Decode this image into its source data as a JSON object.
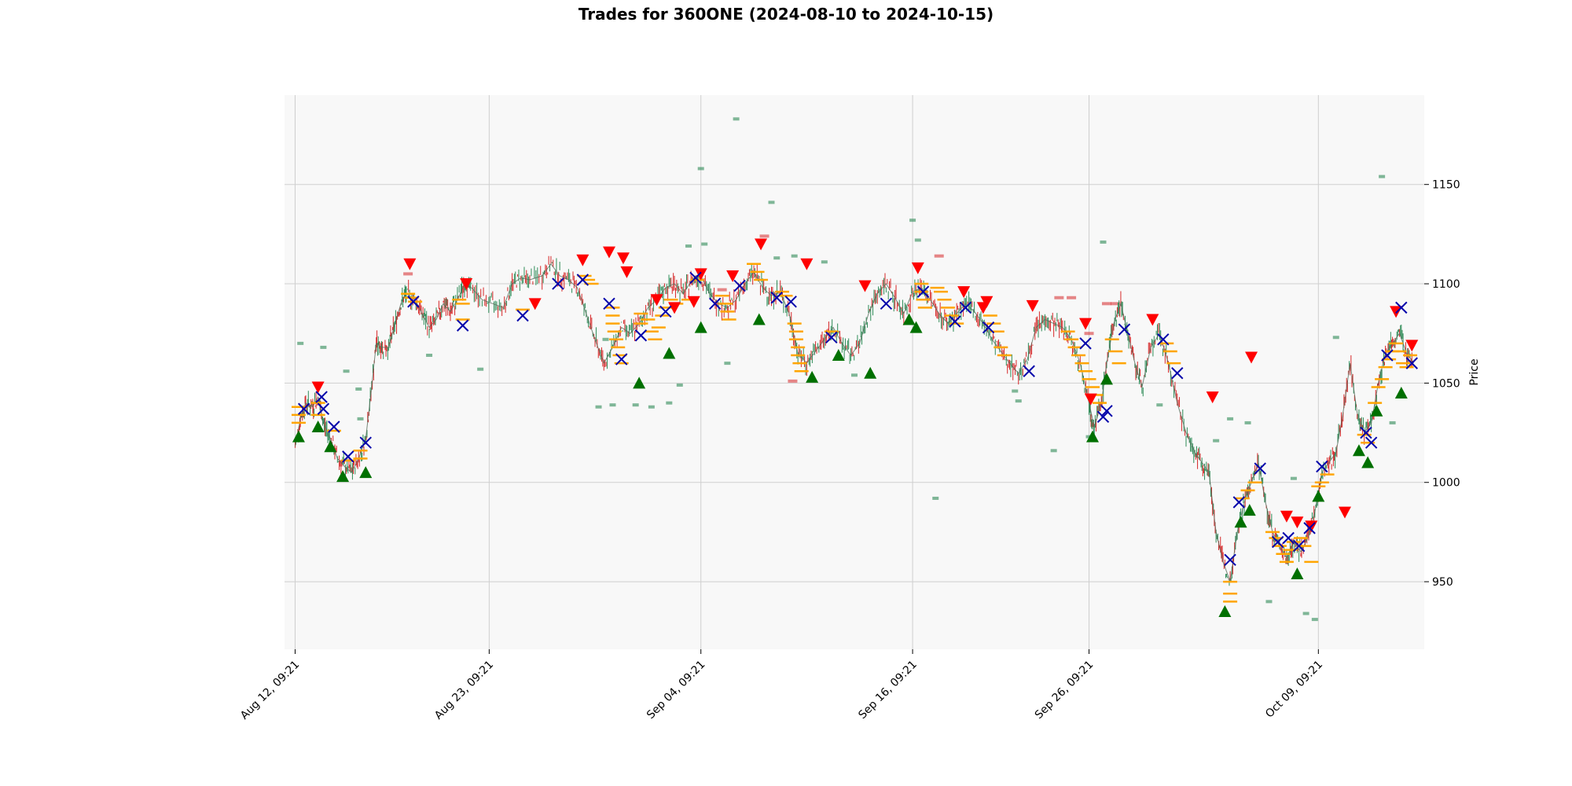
{
  "chart_data": {
    "type": "candlestick",
    "title": "Trades for 360ONE (2024-08-10 to 2024-10-15)",
    "ylabel": "Price",
    "xlabel": "",
    "ylim": [
      916,
      1195
    ],
    "yticks": [
      950,
      1000,
      1050,
      1100,
      1150
    ],
    "x_range_days": [
      -0.6,
      64
    ],
    "xticks": [
      {
        "label": "Aug 12, 09:21",
        "day": 0
      },
      {
        "label": "Aug 23, 09:21",
        "day": 11
      },
      {
        "label": "Sep 04, 09:21",
        "day": 23
      },
      {
        "label": "Sep 16, 09:21",
        "day": 35
      },
      {
        "label": "Sep 26, 09:21",
        "day": 45
      },
      {
        "label": "Oct 09, 09:21",
        "day": 58
      }
    ],
    "grid": true,
    "y_axis_side": "right",
    "colors": {
      "background": "#f8f8f8",
      "grid": "#cfcfcf",
      "up": "#2e8b57",
      "down": "#d62728",
      "price_line": "#556b5a",
      "buy": "#007000",
      "sell": "#ff0000",
      "exit": "#0000aa",
      "level": "#ffa500"
    },
    "price_path": [
      [
        0,
        1018
      ],
      [
        0.3,
        1032
      ],
      [
        0.6,
        1040
      ],
      [
        1.0,
        1038
      ],
      [
        1.3,
        1043
      ],
      [
        1.6,
        1030
      ],
      [
        2.0,
        1022
      ],
      [
        2.4,
        1012
      ],
      [
        2.8,
        1008
      ],
      [
        3.2,
        1005
      ],
      [
        3.6,
        1012
      ],
      [
        4.0,
        1022
      ],
      [
        4.3,
        1045
      ],
      [
        4.6,
        1070
      ],
      [
        4.9,
        1068
      ],
      [
        5.3,
        1068
      ],
      [
        5.6,
        1078
      ],
      [
        6.0,
        1090
      ],
      [
        6.3,
        1095
      ],
      [
        6.8,
        1092
      ],
      [
        7.2,
        1085
      ],
      [
        7.6,
        1078
      ],
      [
        8.0,
        1082
      ],
      [
        8.4,
        1090
      ],
      [
        8.8,
        1086
      ],
      [
        9.2,
        1092
      ],
      [
        9.6,
        1100
      ],
      [
        10.0,
        1098
      ],
      [
        10.6,
        1092
      ],
      [
        11.2,
        1090
      ],
      [
        11.8,
        1088
      ],
      [
        12.3,
        1100
      ],
      [
        12.8,
        1103
      ],
      [
        13.3,
        1102
      ],
      [
        14.0,
        1104
      ],
      [
        14.5,
        1110
      ],
      [
        15.0,
        1104
      ],
      [
        15.5,
        1102
      ],
      [
        16.0,
        1098
      ],
      [
        16.5,
        1085
      ],
      [
        17.0,
        1072
      ],
      [
        17.5,
        1060
      ],
      [
        18.0,
        1068
      ],
      [
        18.5,
        1078
      ],
      [
        19.0,
        1075
      ],
      [
        19.5,
        1080
      ],
      [
        20.0,
        1088
      ],
      [
        20.5,
        1092
      ],
      [
        21.0,
        1098
      ],
      [
        21.5,
        1100
      ],
      [
        22.0,
        1095
      ],
      [
        22.5,
        1102
      ],
      [
        23.0,
        1104
      ],
      [
        23.5,
        1095
      ],
      [
        24.0,
        1090
      ],
      [
        24.5,
        1088
      ],
      [
        25.0,
        1092
      ],
      [
        25.5,
        1100
      ],
      [
        26.0,
        1106
      ],
      [
        26.5,
        1098
      ],
      [
        27.0,
        1094
      ],
      [
        27.5,
        1096
      ],
      [
        28.0,
        1085
      ],
      [
        28.5,
        1065
      ],
      [
        29.0,
        1060
      ],
      [
        29.5,
        1066
      ],
      [
        30.0,
        1072
      ],
      [
        30.5,
        1078
      ],
      [
        31.0,
        1070
      ],
      [
        31.5,
        1064
      ],
      [
        32.0,
        1070
      ],
      [
        32.5,
        1085
      ],
      [
        33.0,
        1095
      ],
      [
        33.5,
        1100
      ],
      [
        34.0,
        1093
      ],
      [
        34.5,
        1085
      ],
      [
        35.0,
        1096
      ],
      [
        35.5,
        1098
      ],
      [
        36.0,
        1092
      ],
      [
        36.5,
        1085
      ],
      [
        37.0,
        1080
      ],
      [
        37.5,
        1085
      ],
      [
        38.0,
        1090
      ],
      [
        38.5,
        1086
      ],
      [
        39.0,
        1080
      ],
      [
        39.5,
        1072
      ],
      [
        40.0,
        1066
      ],
      [
        40.5,
        1060
      ],
      [
        41.0,
        1055
      ],
      [
        41.5,
        1062
      ],
      [
        42.0,
        1078
      ],
      [
        42.5,
        1082
      ],
      [
        43.0,
        1080
      ],
      [
        43.5,
        1078
      ],
      [
        44.0,
        1072
      ],
      [
        44.5,
        1060
      ],
      [
        45.0,
        1040
      ],
      [
        45.3,
        1028
      ],
      [
        45.7,
        1040
      ],
      [
        46.0,
        1060
      ],
      [
        46.4,
        1080
      ],
      [
        46.8,
        1090
      ],
      [
        47.2,
        1075
      ],
      [
        47.6,
        1060
      ],
      [
        48.0,
        1048
      ],
      [
        48.5,
        1068
      ],
      [
        49.0,
        1075
      ],
      [
        49.5,
        1060
      ],
      [
        50.0,
        1040
      ],
      [
        50.5,
        1025
      ],
      [
        51.0,
        1015
      ],
      [
        51.4,
        1010
      ],
      [
        51.8,
        1005
      ],
      [
        52.2,
        975
      ],
      [
        52.6,
        960
      ],
      [
        53.0,
        950
      ],
      [
        53.4,
        975
      ],
      [
        53.8,
        990
      ],
      [
        54.2,
        1000
      ],
      [
        54.6,
        1010
      ],
      [
        55.0,
        990
      ],
      [
        55.4,
        975
      ],
      [
        55.8,
        968
      ],
      [
        56.2,
        962
      ],
      [
        56.6,
        970
      ],
      [
        57.0,
        965
      ],
      [
        57.4,
        972
      ],
      [
        57.8,
        985
      ],
      [
        58.2,
        1005
      ],
      [
        58.6,
        1010
      ],
      [
        59.0,
        1015
      ],
      [
        59.4,
        1035
      ],
      [
        59.8,
        1060
      ],
      [
        60.2,
        1035
      ],
      [
        60.6,
        1025
      ],
      [
        61.0,
        1030
      ],
      [
        61.4,
        1050
      ],
      [
        61.8,
        1065
      ],
      [
        62.2,
        1070
      ],
      [
        62.6,
        1075
      ],
      [
        63.0,
        1065
      ],
      [
        63.4,
        1060
      ]
    ],
    "buys": [
      [
        0.2,
        1023
      ],
      [
        1.3,
        1028
      ],
      [
        2.0,
        1018
      ],
      [
        2.7,
        1003
      ],
      [
        4.0,
        1005
      ],
      [
        19.5,
        1050
      ],
      [
        21.2,
        1065
      ],
      [
        23.0,
        1078
      ],
      [
        26.3,
        1082
      ],
      [
        30.8,
        1064
      ],
      [
        34.8,
        1082
      ],
      [
        35.2,
        1078
      ],
      [
        45.2,
        1023
      ],
      [
        46.0,
        1052
      ],
      [
        52.7,
        935
      ],
      [
        53.6,
        980
      ],
      [
        54.1,
        986
      ],
      [
        56.8,
        954
      ],
      [
        58.0,
        993
      ],
      [
        60.3,
        1016
      ],
      [
        60.8,
        1010
      ],
      [
        61.3,
        1036
      ],
      [
        62.7,
        1045
      ],
      [
        29.3,
        1053
      ],
      [
        32.6,
        1055
      ]
    ],
    "sells": [
      [
        1.3,
        1048
      ],
      [
        6.5,
        1110
      ],
      [
        9.7,
        1100
      ],
      [
        13.6,
        1090
      ],
      [
        16.3,
        1112
      ],
      [
        17.8,
        1116
      ],
      [
        18.6,
        1113
      ],
      [
        20.5,
        1092
      ],
      [
        21.5,
        1088
      ],
      [
        22.6,
        1091
      ],
      [
        23.0,
        1105
      ],
      [
        24.8,
        1104
      ],
      [
        26.4,
        1120
      ],
      [
        29.0,
        1110
      ],
      [
        35.3,
        1108
      ],
      [
        37.9,
        1096
      ],
      [
        39.0,
        1088
      ],
      [
        39.2,
        1091
      ],
      [
        44.8,
        1080
      ],
      [
        45.1,
        1042
      ],
      [
        52.0,
        1043
      ],
      [
        54.2,
        1063
      ],
      [
        56.2,
        983
      ],
      [
        56.8,
        980
      ],
      [
        57.6,
        978
      ],
      [
        59.5,
        985
      ],
      [
        62.4,
        1086
      ],
      [
        63.3,
        1069
      ],
      [
        32.3,
        1099
      ],
      [
        18.8,
        1106
      ],
      [
        41.8,
        1089
      ],
      [
        48.6,
        1082
      ]
    ],
    "exits": [
      [
        0.5,
        1037
      ],
      [
        1.5,
        1043
      ],
      [
        1.6,
        1037
      ],
      [
        2.2,
        1028
      ],
      [
        3.0,
        1013
      ],
      [
        4.0,
        1020
      ],
      [
        6.7,
        1091
      ],
      [
        9.5,
        1079
      ],
      [
        12.9,
        1084
      ],
      [
        14.9,
        1100
      ],
      [
        16.3,
        1102
      ],
      [
        17.8,
        1090
      ],
      [
        18.5,
        1062
      ],
      [
        19.6,
        1074
      ],
      [
        21.0,
        1086
      ],
      [
        22.7,
        1103
      ],
      [
        23.8,
        1090
      ],
      [
        25.2,
        1099
      ],
      [
        27.3,
        1093
      ],
      [
        28.1,
        1091
      ],
      [
        30.4,
        1073
      ],
      [
        33.5,
        1090
      ],
      [
        35.6,
        1096
      ],
      [
        37.4,
        1081
      ],
      [
        38.0,
        1088
      ],
      [
        39.3,
        1078
      ],
      [
        41.6,
        1056
      ],
      [
        44.8,
        1070
      ],
      [
        45.8,
        1033
      ],
      [
        46.0,
        1036
      ],
      [
        47.0,
        1077
      ],
      [
        49.2,
        1072
      ],
      [
        50.0,
        1055
      ],
      [
        53.0,
        961
      ],
      [
        53.5,
        990
      ],
      [
        54.7,
        1007
      ],
      [
        55.7,
        970
      ],
      [
        56.3,
        972
      ],
      [
        56.9,
        968
      ],
      [
        57.5,
        977
      ],
      [
        58.2,
        1008
      ],
      [
        60.7,
        1025
      ],
      [
        61.0,
        1020
      ],
      [
        61.9,
        1064
      ],
      [
        62.7,
        1088
      ],
      [
        63.3,
        1060
      ]
    ],
    "levels": [
      [
        0.2,
        1038
      ],
      [
        0.2,
        1034
      ],
      [
        0.2,
        1030
      ],
      [
        1.3,
        1040
      ],
      [
        1.3,
        1034
      ],
      [
        2.2,
        1026
      ],
      [
        3.0,
        1011
      ],
      [
        3.7,
        1016
      ],
      [
        3.7,
        1012
      ],
      [
        6.4,
        1095
      ],
      [
        6.6,
        1093
      ],
      [
        6.8,
        1091
      ],
      [
        9.3,
        1092
      ],
      [
        9.5,
        1090
      ],
      [
        9.5,
        1082
      ],
      [
        12.9,
        1087
      ],
      [
        16.4,
        1104
      ],
      [
        16.6,
        1102
      ],
      [
        16.8,
        1100
      ],
      [
        18.0,
        1088
      ],
      [
        18.0,
        1084
      ],
      [
        18.0,
        1080
      ],
      [
        18.1,
        1076
      ],
      [
        18.2,
        1072
      ],
      [
        18.3,
        1068
      ],
      [
        18.4,
        1064
      ],
      [
        18.5,
        1060
      ],
      [
        19.6,
        1085
      ],
      [
        19.6,
        1080
      ],
      [
        20.0,
        1082
      ],
      [
        20.2,
        1076
      ],
      [
        20.4,
        1072
      ],
      [
        20.6,
        1078
      ],
      [
        20.8,
        1084
      ],
      [
        21.0,
        1088
      ],
      [
        21.3,
        1092
      ],
      [
        21.6,
        1090
      ],
      [
        22.3,
        1092
      ],
      [
        22.8,
        1102
      ],
      [
        24.2,
        1094
      ],
      [
        24.4,
        1090
      ],
      [
        24.5,
        1086
      ],
      [
        24.6,
        1082
      ],
      [
        26.0,
        1110
      ],
      [
        26.2,
        1106
      ],
      [
        26.4,
        1102
      ],
      [
        27.6,
        1096
      ],
      [
        27.8,
        1094
      ],
      [
        28.3,
        1080
      ],
      [
        28.4,
        1076
      ],
      [
        28.4,
        1072
      ],
      [
        28.5,
        1068
      ],
      [
        28.5,
        1064
      ],
      [
        28.6,
        1060
      ],
      [
        28.7,
        1056
      ],
      [
        30.4,
        1076
      ],
      [
        35.5,
        1100
      ],
      [
        35.5,
        1096
      ],
      [
        35.6,
        1092
      ],
      [
        35.7,
        1088
      ],
      [
        36.4,
        1098
      ],
      [
        36.6,
        1096
      ],
      [
        36.8,
        1092
      ],
      [
        37.0,
        1088
      ],
      [
        37.2,
        1084
      ],
      [
        37.5,
        1080
      ],
      [
        39.4,
        1084
      ],
      [
        39.6,
        1080
      ],
      [
        39.8,
        1076
      ],
      [
        40.0,
        1068
      ],
      [
        40.2,
        1064
      ],
      [
        43.8,
        1076
      ],
      [
        44.0,
        1072
      ],
      [
        44.2,
        1068
      ],
      [
        44.4,
        1064
      ],
      [
        44.6,
        1060
      ],
      [
        44.8,
        1056
      ],
      [
        45.0,
        1052
      ],
      [
        45.2,
        1048
      ],
      [
        45.4,
        1044
      ],
      [
        45.6,
        1040
      ],
      [
        46.3,
        1072
      ],
      [
        46.5,
        1066
      ],
      [
        46.7,
        1060
      ],
      [
        49.4,
        1070
      ],
      [
        49.6,
        1066
      ],
      [
        49.8,
        1060
      ],
      [
        53.0,
        950
      ],
      [
        53.0,
        944
      ],
      [
        53.0,
        940
      ],
      [
        53.7,
        992
      ],
      [
        54.0,
        996
      ],
      [
        54.4,
        1000
      ],
      [
        55.4,
        975
      ],
      [
        55.6,
        972
      ],
      [
        55.8,
        968
      ],
      [
        56.0,
        964
      ],
      [
        56.2,
        960
      ],
      [
        56.4,
        966
      ],
      [
        56.6,
        970
      ],
      [
        57.0,
        972
      ],
      [
        57.2,
        968
      ],
      [
        57.6,
        960
      ],
      [
        58.0,
        998
      ],
      [
        58.2,
        1000
      ],
      [
        58.5,
        1004
      ],
      [
        60.6,
        1024
      ],
      [
        60.8,
        1020
      ],
      [
        61.2,
        1040
      ],
      [
        61.4,
        1048
      ],
      [
        61.6,
        1052
      ],
      [
        61.8,
        1058
      ],
      [
        62.0,
        1062
      ],
      [
        62.2,
        1066
      ],
      [
        62.4,
        1070
      ],
      [
        62.6,
        1066
      ],
      [
        62.8,
        1060
      ],
      [
        63.0,
        1058
      ],
      [
        63.2,
        1064
      ]
    ],
    "buy_zones": [
      [
        0.3,
        1070
      ],
      [
        1.6,
        1068
      ],
      [
        2.9,
        1056
      ],
      [
        3.6,
        1047
      ],
      [
        3.7,
        1032
      ],
      [
        7.6,
        1064
      ],
      [
        10.5,
        1057
      ],
      [
        17.6,
        1072
      ],
      [
        19.3,
        1039
      ],
      [
        20.2,
        1038
      ],
      [
        21.2,
        1040
      ],
      [
        21.8,
        1049
      ],
      [
        22.3,
        1119
      ],
      [
        23.2,
        1120
      ],
      [
        24.5,
        1060
      ],
      [
        25.0,
        1183
      ],
      [
        27.0,
        1141
      ],
      [
        27.3,
        1113
      ],
      [
        28.3,
        1114
      ],
      [
        30.0,
        1111
      ],
      [
        31.7,
        1054
      ],
      [
        35.0,
        1132
      ],
      [
        35.3,
        1122
      ],
      [
        36.3,
        992
      ],
      [
        40.8,
        1046
      ],
      [
        41.0,
        1041
      ],
      [
        43.0,
        1016
      ],
      [
        45.0,
        1023
      ],
      [
        45.8,
        1121
      ],
      [
        49.0,
        1039
      ],
      [
        52.2,
        1021
      ],
      [
        53.0,
        1032
      ],
      [
        54.0,
        1030
      ],
      [
        55.2,
        940
      ],
      [
        56.6,
        1002
      ],
      [
        57.3,
        934
      ],
      [
        57.8,
        931
      ],
      [
        59.0,
        1073
      ],
      [
        61.6,
        1154
      ],
      [
        62.2,
        1030
      ],
      [
        23.0,
        1158
      ],
      [
        17.2,
        1038
      ],
      [
        18.0,
        1039
      ]
    ],
    "sell_zones": [
      [
        6.4,
        1105
      ],
      [
        24.2,
        1097
      ],
      [
        26.6,
        1124
      ],
      [
        28.2,
        1051
      ],
      [
        36.5,
        1114
      ],
      [
        43.3,
        1093
      ],
      [
        44.0,
        1093
      ],
      [
        45.0,
        1075
      ],
      [
        46.0,
        1090
      ],
      [
        46.5,
        1090
      ]
    ]
  }
}
